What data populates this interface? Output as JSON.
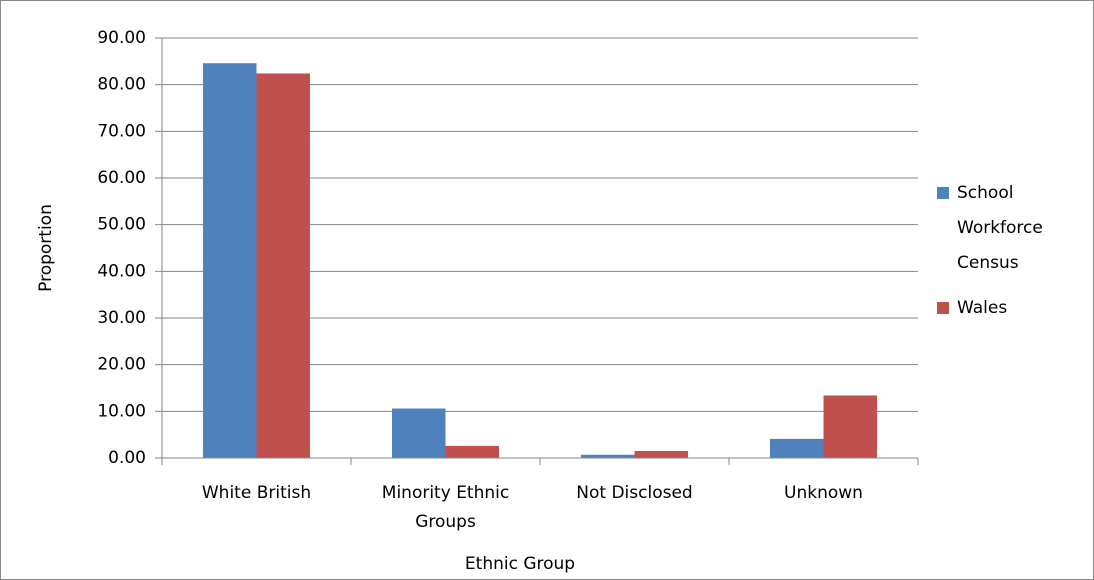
{
  "chart_data": {
    "type": "bar",
    "x_label": "Ethnic Group",
    "y_label": "Proportion",
    "categories": [
      "White British",
      "Minority Ethnic Groups",
      "Not Disclosed",
      "Unknown"
    ],
    "series": [
      {
        "name": "School Workforce Census",
        "color": "#4f81bd",
        "values": [
          84.6,
          10.6,
          0.7,
          4.1
        ]
      },
      {
        "name": "Wales",
        "color": "#c0504d",
        "values": [
          82.4,
          2.6,
          1.5,
          13.4
        ]
      }
    ],
    "ylim": [
      0,
      90
    ],
    "yticks": [
      {
        "value": 0,
        "label": "0.00"
      },
      {
        "value": 10,
        "label": "10.00"
      },
      {
        "value": 20,
        "label": "20.00"
      },
      {
        "value": 30,
        "label": "30.00"
      },
      {
        "value": 40,
        "label": "40.00"
      },
      {
        "value": 50,
        "label": "50.00"
      },
      {
        "value": 60,
        "label": "60.00"
      },
      {
        "value": 70,
        "label": "70.00"
      },
      {
        "value": 80,
        "label": "80.00"
      },
      {
        "value": 90,
        "label": "90.00"
      }
    ],
    "grid": true,
    "legend": "right"
  }
}
